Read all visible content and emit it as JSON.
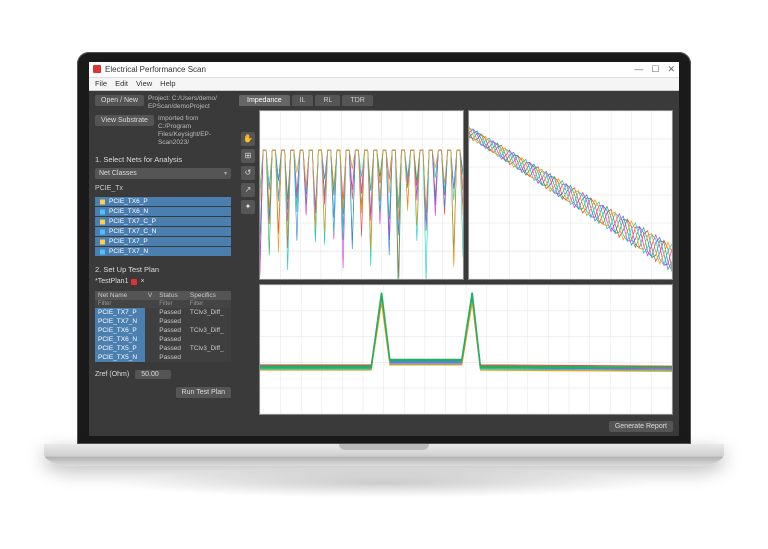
{
  "window": {
    "title": "Electrical Performance Scan",
    "minimize": "—",
    "maximize": "☐",
    "close": "✕"
  },
  "menu": {
    "file": "File",
    "edit": "Edit",
    "view": "View",
    "help": "Help"
  },
  "sidebar": {
    "open_new": "Open / New",
    "project_line1": "Project: C:/Users/demo/",
    "project_line2": "EPScan/demoProject",
    "view_substrate": "View Substrate",
    "imported_line1": "Imported from C:/Program",
    "imported_line2": "Files/Keysight/EP-Scan2023/",
    "step1": "1. Select Nets for Analysis",
    "net_classes": "Net Classes",
    "group_label": "PCIE_Tx",
    "nets": [
      "PCIE_TX6_P",
      "PCIE_TX6_N",
      "PCIE_TX7_C_P",
      "PCIE_TX7_C_N",
      "PCIE_TX7_P",
      "PCIE_TX7_N"
    ],
    "step2": "2. Set Up Test Plan",
    "testplan_tab": "*TestPlan1",
    "close_tab": "×",
    "tbl_headers": {
      "name": "Net Name",
      "v": "V",
      "status": "Status",
      "specifics": "Specifics"
    },
    "tbl_filter": "Filter",
    "rows": [
      {
        "name": "PCIE_TX7_P",
        "status": "Passed",
        "specifics": "TClv3_Diff_"
      },
      {
        "name": "PCIE_TX7_N",
        "status": "Passed",
        "specifics": ""
      },
      {
        "name": "PCIE_TX6_P",
        "status": "Passed",
        "specifics": "TClv3_Diff_"
      },
      {
        "name": "PCIE_TX6_N",
        "status": "Passed",
        "specifics": ""
      },
      {
        "name": "PCIE_TX5_P",
        "status": "Passed",
        "specifics": "TClv3_Diff_"
      },
      {
        "name": "PCIE_TX5_N",
        "status": "Passed",
        "specifics": ""
      }
    ],
    "zref_label": "Zref (Ohm)",
    "zref_value": "50.00",
    "run_btn": "Run Test Plan"
  },
  "content": {
    "tabs": [
      {
        "label": "Impedance",
        "active": true
      },
      {
        "label": "IL",
        "active": false
      },
      {
        "label": "RL",
        "active": false
      },
      {
        "label": "TDR",
        "active": false
      }
    ],
    "tools": [
      "✋",
      "⊞",
      "↺",
      "↗",
      "✦"
    ],
    "generate_btn": "Generate Report",
    "chart_colors": [
      "#e74c3c",
      "#27ae60",
      "#2e86de",
      "#d63cd6",
      "#16d0c5",
      "#f39c12"
    ],
    "grid_color": "#e6e6e6",
    "background": "#ffffff",
    "chart1": {
      "type": "line-spectrum",
      "desc": "dense oscillating traces with deep notches",
      "xlim": [
        0,
        100
      ],
      "ylim": [
        0,
        100
      ],
      "n_waves": 22
    },
    "chart2": {
      "type": "line-decay",
      "desc": "bundle of decaying oscillating traces",
      "xlim": [
        0,
        100
      ],
      "ylim": [
        0,
        100
      ]
    },
    "chart3": {
      "type": "line-tdr",
      "desc": "flat baseline with two sharp peaks",
      "xlim": [
        0,
        100
      ],
      "ylim": [
        0,
        100
      ],
      "peak1_x": 30,
      "peak2_x": 52,
      "baseline_y": 62,
      "peak_y": 6
    }
  }
}
